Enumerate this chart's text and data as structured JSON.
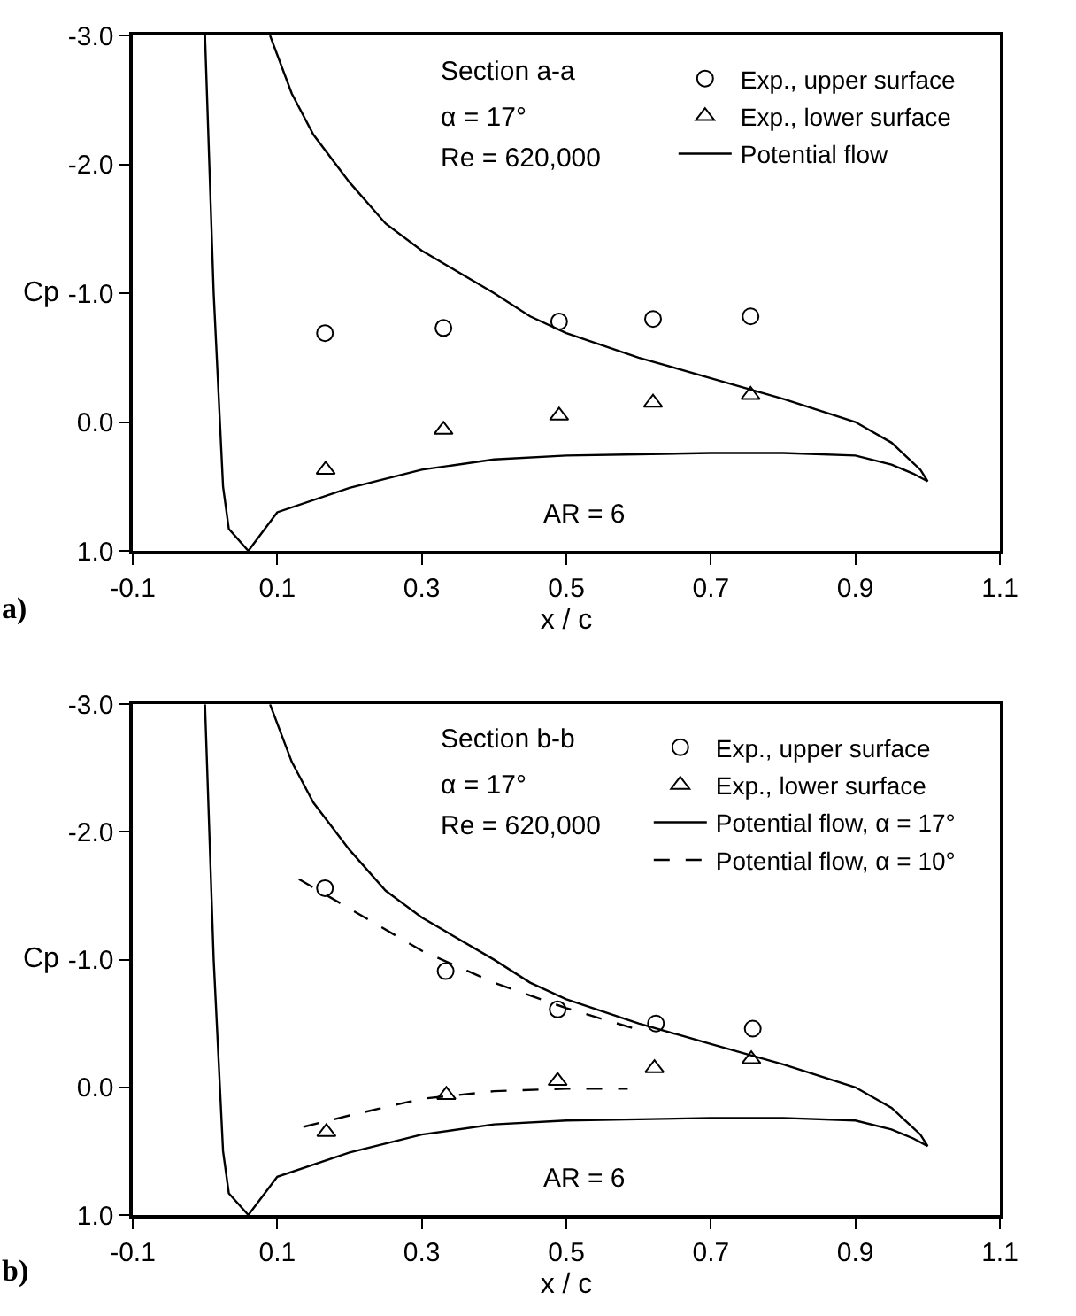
{
  "chart_data": [
    {
      "type": "scatter",
      "xlabel": "x / c",
      "ylabel": "Cp",
      "xlim": [
        -0.1,
        1.1
      ],
      "ylim": [
        1.0,
        -3.0
      ],
      "xticks": [
        -0.1,
        0.1,
        0.3,
        0.5,
        0.7,
        0.9,
        1.1
      ],
      "yticks": [
        {
          "value": -3,
          "label": "-3.0"
        },
        {
          "value": -2,
          "label": "-2.0"
        },
        {
          "value": -1,
          "label": "-1.0"
        },
        {
          "value": 0,
          "label": "0.0"
        },
        {
          "value": 1,
          "label": "1.0"
        }
      ],
      "legend": "top right",
      "annotations": [
        "Section a-a",
        "α = 17°",
        "Re = 620,000",
        "AR = 6",
        "a)"
      ],
      "series": [
        {
          "name": "Exp., upper surface",
          "marker": "circle",
          "color": "#000000",
          "x": [
            0.166,
            0.33,
            0.49,
            0.62,
            0.755
          ],
          "values": [
            -0.69,
            -0.73,
            -0.78,
            -0.8,
            -0.82
          ]
        },
        {
          "name": "Exp., lower surface",
          "marker": "triangle",
          "color": "#000000",
          "x": [
            0.167,
            0.33,
            0.49,
            0.62,
            0.755
          ],
          "values": [
            0.37,
            0.06,
            -0.05,
            -0.15,
            -0.21
          ]
        },
        {
          "name": "Potential flow",
          "type": "line",
          "marker": "none",
          "line_style": "solid",
          "color": "#000000",
          "x": [
            0.0,
            0.012,
            0.025,
            0.033,
            0.06,
            0.1,
            0.2,
            0.3,
            0.4,
            0.5,
            0.6,
            0.7,
            0.8,
            0.9,
            0.95,
            0.98,
            1.0,
            0.99,
            0.95,
            0.9,
            0.8,
            0.7,
            0.6,
            0.5,
            0.45,
            0.4,
            0.3,
            0.25,
            0.2,
            0.15,
            0.12,
            0.09
          ],
          "values": [
            -3.0,
            -1.0,
            0.5,
            0.83,
            1.0,
            0.7,
            0.51,
            0.37,
            0.29,
            0.26,
            0.25,
            0.24,
            0.24,
            0.26,
            0.33,
            0.4,
            0.46,
            0.37,
            0.16,
            0.0,
            -0.18,
            -0.34,
            -0.5,
            -0.69,
            -0.82,
            -1.0,
            -1.33,
            -1.54,
            -1.86,
            -2.23,
            -2.55,
            -3.0
          ]
        }
      ]
    },
    {
      "type": "scatter",
      "xlabel": "x / c",
      "ylabel": "Cp",
      "xlim": [
        -0.1,
        1.1
      ],
      "ylim": [
        1.0,
        -3.0
      ],
      "xticks": [
        -0.1,
        0.1,
        0.3,
        0.5,
        0.7,
        0.9,
        1.1
      ],
      "yticks": [
        {
          "value": -3,
          "label": "-3.0"
        },
        {
          "value": -2,
          "label": "-2.0"
        },
        {
          "value": -1,
          "label": "-1.0"
        },
        {
          "value": 0,
          "label": "0.0"
        },
        {
          "value": 1,
          "label": "1.0"
        }
      ],
      "legend": "top right",
      "annotations": [
        "Section b-b",
        "α = 17°",
        "Re = 620,000",
        "AR = 6",
        "b)"
      ],
      "series": [
        {
          "name": "Exp., upper surface",
          "marker": "circle",
          "color": "#000000",
          "x": [
            0.166,
            0.333,
            0.488,
            0.624,
            0.758
          ],
          "values": [
            -1.56,
            -0.91,
            -0.61,
            -0.5,
            -0.46
          ]
        },
        {
          "name": "Exp., lower surface",
          "marker": "triangle",
          "color": "#000000",
          "x": [
            0.168,
            0.334,
            0.488,
            0.622,
            0.756
          ],
          "values": [
            0.35,
            0.06,
            -0.05,
            -0.15,
            -0.22
          ]
        },
        {
          "name": "Potential flow, α = 17°",
          "type": "line",
          "marker": "none",
          "line_style": "solid",
          "color": "#000000",
          "x": [
            0.0,
            0.012,
            0.025,
            0.033,
            0.06,
            0.1,
            0.2,
            0.3,
            0.4,
            0.5,
            0.6,
            0.7,
            0.8,
            0.9,
            0.95,
            0.98,
            1.0,
            0.99,
            0.95,
            0.9,
            0.8,
            0.7,
            0.6,
            0.5,
            0.45,
            0.4,
            0.3,
            0.25,
            0.2,
            0.15,
            0.12,
            0.09
          ],
          "values": [
            -3.0,
            -1.0,
            0.5,
            0.83,
            1.0,
            0.7,
            0.51,
            0.37,
            0.29,
            0.26,
            0.25,
            0.24,
            0.24,
            0.26,
            0.33,
            0.4,
            0.46,
            0.37,
            0.16,
            0.0,
            -0.18,
            -0.34,
            -0.5,
            -0.69,
            -0.82,
            -1.0,
            -1.33,
            -1.54,
            -1.86,
            -2.23,
            -2.55,
            -3.0
          ]
        },
        {
          "name": "Potential flow, α = 10°",
          "type": "line",
          "marker": "none",
          "line_style": "dashed",
          "color": "#000000",
          "x": [
            0.13,
            0.2,
            0.3,
            0.4,
            0.5,
            0.6
          ],
          "values": [
            -1.63,
            -1.4,
            -1.07,
            -0.82,
            -0.62,
            -0.45
          ]
        },
        {
          "type": "line",
          "marker": "none",
          "line_style": "dashed",
          "color": "#000000",
          "x": [
            0.136,
            0.2,
            0.3,
            0.4,
            0.5,
            0.585
          ],
          "values": [
            0.31,
            0.22,
            0.09,
            0.03,
            0.01,
            0.01
          ]
        }
      ]
    }
  ]
}
